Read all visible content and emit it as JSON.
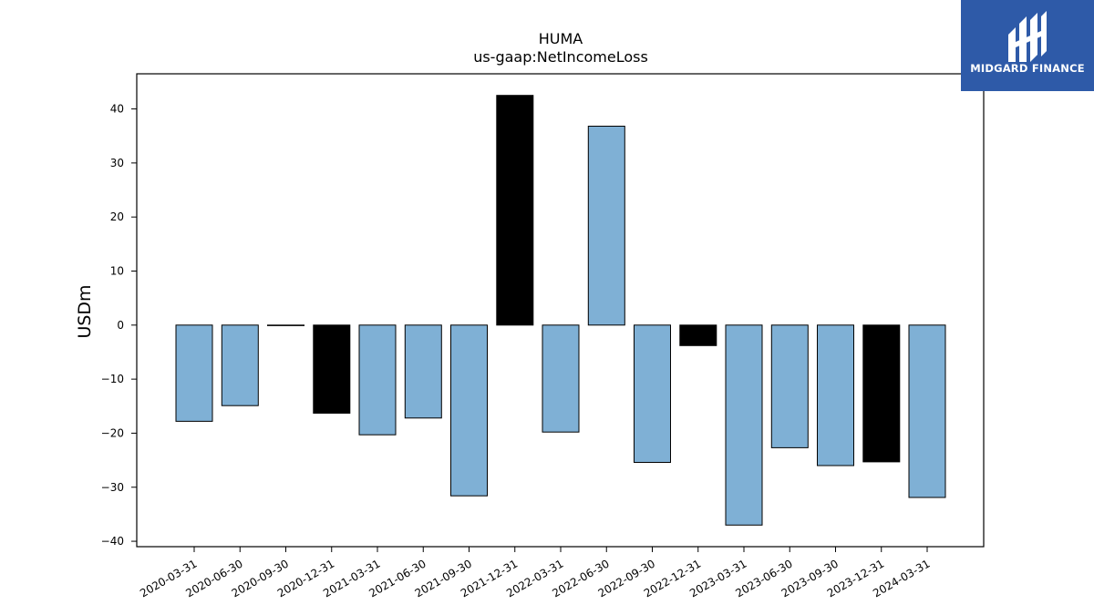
{
  "chart_data": {
    "type": "bar",
    "title": "HUMA",
    "subtitle": "us-gaap:NetIncomeLoss",
    "xlabel": "",
    "ylabel": "USDm",
    "ylim": [
      -41,
      46.5
    ],
    "yticks": [
      40,
      30,
      20,
      10,
      0,
      -10,
      -20,
      -30,
      -40
    ],
    "ytick_labels": [
      "40",
      "30",
      "20",
      "10",
      "0",
      "−10",
      "−20",
      "−30",
      "−40"
    ],
    "grid": false,
    "categories": [
      "2020-03-31",
      "2020-06-30",
      "2020-09-30",
      "2020-12-31",
      "2021-03-31",
      "2021-06-30",
      "2021-09-30",
      "2021-12-31",
      "2022-03-31",
      "2022-06-30",
      "2022-09-30",
      "2022-12-31",
      "2023-03-31",
      "2023-06-30",
      "2023-09-30",
      "2023-12-31",
      "2024-03-31"
    ],
    "values": [
      -17.8,
      -14.9,
      0.0,
      -16.3,
      -20.3,
      -17.2,
      -31.6,
      42.5,
      -19.8,
      36.8,
      -25.4,
      -3.8,
      -37.0,
      -22.7,
      -26.0,
      -25.3,
      -31.9
    ],
    "bar_colors": [
      "#7fb0d5",
      "#7fb0d5",
      "#7fb0d5",
      "#000000",
      "#7fb0d5",
      "#7fb0d5",
      "#7fb0d5",
      "#000000",
      "#7fb0d5",
      "#7fb0d5",
      "#7fb0d5",
      "#000000",
      "#7fb0d5",
      "#7fb0d5",
      "#7fb0d5",
      "#000000",
      "#7fb0d5"
    ]
  },
  "logo": {
    "text": "MIDGARD FINANCE",
    "background": "#2e5aa8"
  }
}
